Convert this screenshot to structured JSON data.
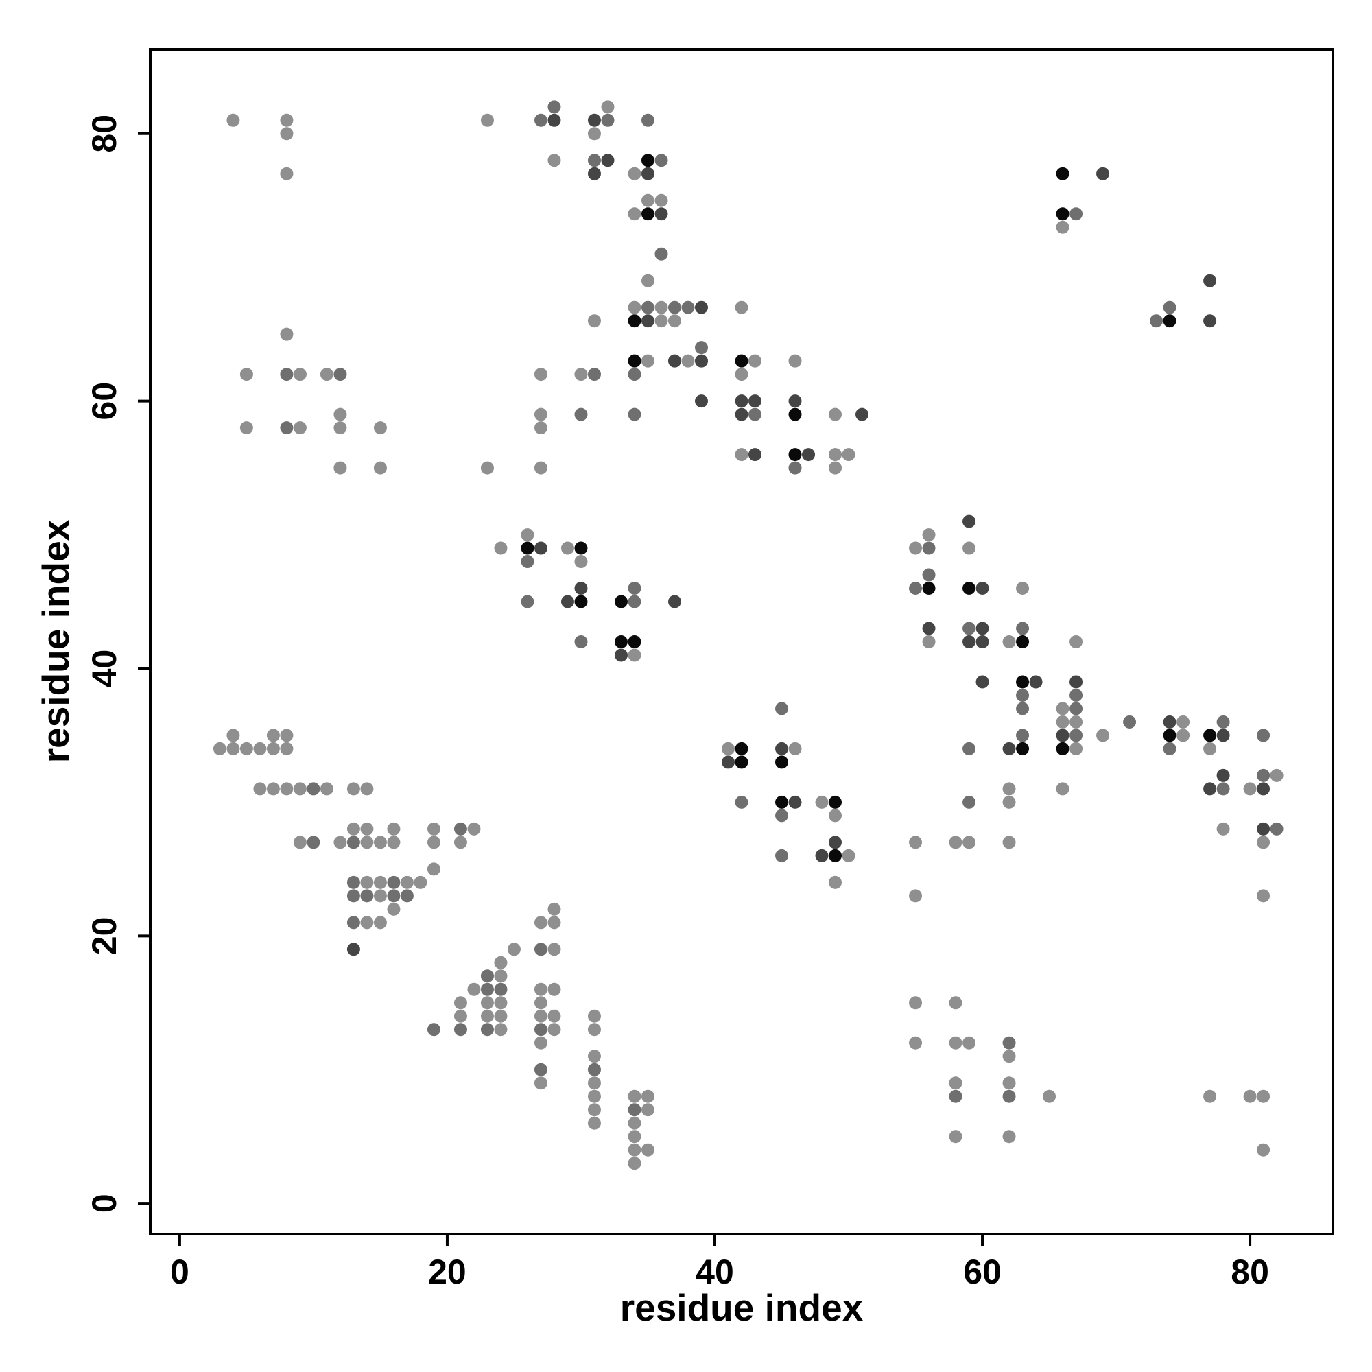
{
  "chart_data": {
    "type": "scatter",
    "xlabel": "residue index",
    "ylabel": "residue index",
    "xlim": [
      -2.2,
      86.2
    ],
    "ylim": [
      -2.3,
      86.3
    ],
    "xticks": [
      0,
      20,
      40,
      60,
      80
    ],
    "yticks": [
      0,
      20,
      40,
      60,
      80
    ],
    "grid": false,
    "shade_levels": {
      "l": "#8f8f8f",
      "m": "#6f6f6f",
      "d": "#454545",
      "k": "#0a0a0a"
    },
    "points": [
      [
        4,
        81,
        "l"
      ],
      [
        8,
        81,
        "l"
      ],
      [
        8,
        80,
        "l"
      ],
      [
        8,
        77,
        "l"
      ],
      [
        23,
        81,
        "l"
      ],
      [
        27,
        81,
        "m"
      ],
      [
        28,
        82,
        "m"
      ],
      [
        28,
        81,
        "d"
      ],
      [
        28,
        78,
        "l"
      ],
      [
        31,
        81,
        "d"
      ],
      [
        31,
        80,
        "l"
      ],
      [
        32,
        82,
        "l"
      ],
      [
        32,
        81,
        "m"
      ],
      [
        31,
        78,
        "m"
      ],
      [
        32,
        78,
        "d"
      ],
      [
        31,
        77,
        "d"
      ],
      [
        35,
        81,
        "m"
      ],
      [
        35,
        78,
        "k"
      ],
      [
        36,
        78,
        "m"
      ],
      [
        34,
        77,
        "l"
      ],
      [
        35,
        77,
        "d"
      ],
      [
        35,
        75,
        "l"
      ],
      [
        36,
        75,
        "l"
      ],
      [
        34,
        74,
        "l"
      ],
      [
        35,
        74,
        "k"
      ],
      [
        36,
        74,
        "d"
      ],
      [
        36,
        71,
        "m"
      ],
      [
        35,
        69,
        "l"
      ],
      [
        34,
        67,
        "l"
      ],
      [
        35,
        67,
        "m"
      ],
      [
        36,
        67,
        "l"
      ],
      [
        37,
        67,
        "m"
      ],
      [
        38,
        67,
        "m"
      ],
      [
        39,
        67,
        "d"
      ],
      [
        31,
        66,
        "l"
      ],
      [
        34,
        66,
        "k"
      ],
      [
        35,
        66,
        "d"
      ],
      [
        36,
        66,
        "l"
      ],
      [
        37,
        66,
        "l"
      ],
      [
        34,
        63,
        "k"
      ],
      [
        35,
        63,
        "l"
      ],
      [
        37,
        63,
        "d"
      ],
      [
        38,
        63,
        "l"
      ],
      [
        39,
        63,
        "d"
      ],
      [
        39,
        64,
        "m"
      ],
      [
        34,
        62,
        "m"
      ],
      [
        39,
        60,
        "d"
      ],
      [
        34,
        59,
        "m"
      ],
      [
        66,
        77,
        "k"
      ],
      [
        69,
        77,
        "d"
      ],
      [
        66,
        74,
        "k"
      ],
      [
        67,
        74,
        "m"
      ],
      [
        66,
        73,
        "l"
      ],
      [
        77,
        69,
        "d"
      ],
      [
        74,
        67,
        "m"
      ],
      [
        73,
        66,
        "m"
      ],
      [
        74,
        66,
        "k"
      ],
      [
        77,
        66,
        "d"
      ],
      [
        5,
        62,
        "l"
      ],
      [
        8,
        62,
        "m"
      ],
      [
        9,
        62,
        "l"
      ],
      [
        11,
        62,
        "l"
      ],
      [
        12,
        62,
        "m"
      ],
      [
        8,
        65,
        "l"
      ],
      [
        12,
        59,
        "l"
      ],
      [
        5,
        58,
        "l"
      ],
      [
        8,
        58,
        "m"
      ],
      [
        9,
        58,
        "l"
      ],
      [
        12,
        58,
        "l"
      ],
      [
        15,
        58,
        "l"
      ],
      [
        12,
        55,
        "l"
      ],
      [
        15,
        55,
        "l"
      ],
      [
        23,
        55,
        "l"
      ],
      [
        27,
        62,
        "l"
      ],
      [
        27,
        59,
        "l"
      ],
      [
        27,
        58,
        "l"
      ],
      [
        27,
        55,
        "l"
      ],
      [
        30,
        62,
        "l"
      ],
      [
        31,
        62,
        "m"
      ],
      [
        30,
        59,
        "m"
      ],
      [
        42,
        67,
        "l"
      ],
      [
        42,
        63,
        "k"
      ],
      [
        43,
        63,
        "l"
      ],
      [
        42,
        62,
        "l"
      ],
      [
        42,
        60,
        "d"
      ],
      [
        43,
        60,
        "d"
      ],
      [
        42,
        59,
        "d"
      ],
      [
        43,
        59,
        "m"
      ],
      [
        42,
        56,
        "l"
      ],
      [
        43,
        56,
        "d"
      ],
      [
        46,
        63,
        "l"
      ],
      [
        46,
        60,
        "d"
      ],
      [
        46,
        59,
        "k"
      ],
      [
        46,
        56,
        "k"
      ],
      [
        47,
        56,
        "d"
      ],
      [
        46,
        55,
        "m"
      ],
      [
        49,
        59,
        "l"
      ],
      [
        51,
        59,
        "d"
      ],
      [
        49,
        56,
        "l"
      ],
      [
        50,
        56,
        "l"
      ],
      [
        49,
        55,
        "l"
      ],
      [
        24,
        49,
        "l"
      ],
      [
        26,
        50,
        "l"
      ],
      [
        26,
        49,
        "k"
      ],
      [
        27,
        49,
        "d"
      ],
      [
        26,
        48,
        "m"
      ],
      [
        29,
        49,
        "l"
      ],
      [
        30,
        49,
        "k"
      ],
      [
        30,
        48,
        "l"
      ],
      [
        30,
        46,
        "d"
      ],
      [
        26,
        45,
        "m"
      ],
      [
        29,
        45,
        "d"
      ],
      [
        30,
        45,
        "k"
      ],
      [
        30,
        42,
        "m"
      ],
      [
        33,
        45,
        "k"
      ],
      [
        34,
        45,
        "m"
      ],
      [
        34,
        46,
        "m"
      ],
      [
        37,
        45,
        "d"
      ],
      [
        33,
        42,
        "k"
      ],
      [
        34,
        42,
        "k"
      ],
      [
        33,
        41,
        "d"
      ],
      [
        34,
        41,
        "l"
      ],
      [
        55,
        49,
        "l"
      ],
      [
        56,
        49,
        "m"
      ],
      [
        56,
        50,
        "l"
      ],
      [
        55,
        46,
        "m"
      ],
      [
        56,
        46,
        "k"
      ],
      [
        56,
        47,
        "m"
      ],
      [
        56,
        43,
        "d"
      ],
      [
        56,
        42,
        "l"
      ],
      [
        59,
        51,
        "d"
      ],
      [
        59,
        49,
        "l"
      ],
      [
        59,
        46,
        "k"
      ],
      [
        60,
        46,
        "d"
      ],
      [
        59,
        43,
        "m"
      ],
      [
        60,
        43,
        "d"
      ],
      [
        59,
        42,
        "d"
      ],
      [
        60,
        42,
        "d"
      ],
      [
        60,
        39,
        "d"
      ],
      [
        62,
        42,
        "l"
      ],
      [
        63,
        42,
        "k"
      ],
      [
        63,
        43,
        "m"
      ],
      [
        63,
        46,
        "l"
      ],
      [
        63,
        39,
        "k"
      ],
      [
        64,
        39,
        "d"
      ],
      [
        63,
        38,
        "m"
      ],
      [
        63,
        37,
        "m"
      ],
      [
        63,
        35,
        "m"
      ],
      [
        62,
        34,
        "d"
      ],
      [
        63,
        34,
        "k"
      ],
      [
        66,
        37,
        "l"
      ],
      [
        67,
        37,
        "m"
      ],
      [
        67,
        38,
        "m"
      ],
      [
        67,
        39,
        "d"
      ],
      [
        66,
        36,
        "l"
      ],
      [
        67,
        36,
        "l"
      ],
      [
        66,
        35,
        "d"
      ],
      [
        67,
        35,
        "m"
      ],
      [
        66,
        34,
        "k"
      ],
      [
        67,
        34,
        "l"
      ],
      [
        67,
        42,
        "l"
      ],
      [
        69,
        35,
        "l"
      ],
      [
        71,
        36,
        "m"
      ],
      [
        74,
        36,
        "d"
      ],
      [
        75,
        36,
        "l"
      ],
      [
        74,
        35,
        "k"
      ],
      [
        75,
        35,
        "l"
      ],
      [
        74,
        34,
        "m"
      ],
      [
        77,
        35,
        "k"
      ],
      [
        78,
        35,
        "d"
      ],
      [
        78,
        36,
        "m"
      ],
      [
        77,
        34,
        "l"
      ],
      [
        77,
        31,
        "d"
      ],
      [
        78,
        32,
        "d"
      ],
      [
        78,
        31,
        "m"
      ],
      [
        78,
        28,
        "l"
      ],
      [
        81,
        35,
        "m"
      ],
      [
        80,
        31,
        "l"
      ],
      [
        81,
        31,
        "d"
      ],
      [
        81,
        32,
        "m"
      ],
      [
        82,
        32,
        "l"
      ],
      [
        81,
        28,
        "d"
      ],
      [
        82,
        28,
        "m"
      ],
      [
        81,
        27,
        "l"
      ],
      [
        81,
        23,
        "l"
      ],
      [
        41,
        34,
        "l"
      ],
      [
        42,
        34,
        "k"
      ],
      [
        41,
        33,
        "d"
      ],
      [
        42,
        33,
        "k"
      ],
      [
        42,
        30,
        "m"
      ],
      [
        45,
        37,
        "m"
      ],
      [
        45,
        34,
        "d"
      ],
      [
        46,
        34,
        "l"
      ],
      [
        45,
        33,
        "k"
      ],
      [
        45,
        30,
        "k"
      ],
      [
        46,
        30,
        "d"
      ],
      [
        45,
        29,
        "m"
      ],
      [
        45,
        26,
        "m"
      ],
      [
        48,
        30,
        "l"
      ],
      [
        49,
        30,
        "k"
      ],
      [
        49,
        29,
        "l"
      ],
      [
        49,
        27,
        "d"
      ],
      [
        48,
        26,
        "d"
      ],
      [
        49,
        26,
        "k"
      ],
      [
        50,
        26,
        "l"
      ],
      [
        49,
        24,
        "l"
      ],
      [
        55,
        27,
        "l"
      ],
      [
        55,
        23,
        "l"
      ],
      [
        58,
        27,
        "l"
      ],
      [
        59,
        27,
        "l"
      ],
      [
        59,
        30,
        "m"
      ],
      [
        59,
        34,
        "m"
      ],
      [
        62,
        31,
        "l"
      ],
      [
        62,
        30,
        "l"
      ],
      [
        62,
        27,
        "l"
      ],
      [
        66,
        31,
        "l"
      ],
      [
        3,
        34,
        "l"
      ],
      [
        4,
        35,
        "l"
      ],
      [
        4,
        34,
        "l"
      ],
      [
        5,
        34,
        "l"
      ],
      [
        6,
        34,
        "l"
      ],
      [
        7,
        35,
        "l"
      ],
      [
        7,
        34,
        "l"
      ],
      [
        8,
        35,
        "l"
      ],
      [
        8,
        34,
        "l"
      ],
      [
        6,
        31,
        "l"
      ],
      [
        7,
        31,
        "l"
      ],
      [
        8,
        31,
        "l"
      ],
      [
        9,
        31,
        "l"
      ],
      [
        10,
        31,
        "m"
      ],
      [
        11,
        31,
        "l"
      ],
      [
        13,
        31,
        "l"
      ],
      [
        14,
        31,
        "l"
      ],
      [
        9,
        27,
        "l"
      ],
      [
        10,
        27,
        "m"
      ],
      [
        12,
        27,
        "l"
      ],
      [
        13,
        28,
        "l"
      ],
      [
        13,
        27,
        "m"
      ],
      [
        14,
        28,
        "l"
      ],
      [
        14,
        27,
        "l"
      ],
      [
        15,
        27,
        "l"
      ],
      [
        16,
        28,
        "l"
      ],
      [
        16,
        27,
        "l"
      ],
      [
        19,
        28,
        "l"
      ],
      [
        19,
        27,
        "l"
      ],
      [
        21,
        28,
        "m"
      ],
      [
        22,
        28,
        "l"
      ],
      [
        21,
        27,
        "l"
      ],
      [
        19,
        25,
        "l"
      ],
      [
        13,
        24,
        "m"
      ],
      [
        14,
        24,
        "l"
      ],
      [
        15,
        24,
        "l"
      ],
      [
        16,
        24,
        "m"
      ],
      [
        17,
        24,
        "l"
      ],
      [
        18,
        24,
        "l"
      ],
      [
        13,
        23,
        "m"
      ],
      [
        14,
        23,
        "m"
      ],
      [
        15,
        23,
        "l"
      ],
      [
        16,
        23,
        "m"
      ],
      [
        17,
        23,
        "m"
      ],
      [
        16,
        22,
        "l"
      ],
      [
        13,
        21,
        "m"
      ],
      [
        14,
        21,
        "l"
      ],
      [
        15,
        21,
        "l"
      ],
      [
        13,
        19,
        "d"
      ],
      [
        27,
        21,
        "l"
      ],
      [
        28,
        21,
        "l"
      ],
      [
        28,
        22,
        "l"
      ],
      [
        25,
        19,
        "l"
      ],
      [
        27,
        19,
        "m"
      ],
      [
        28,
        19,
        "l"
      ],
      [
        24,
        18,
        "l"
      ],
      [
        23,
        17,
        "m"
      ],
      [
        24,
        17,
        "l"
      ],
      [
        22,
        16,
        "l"
      ],
      [
        23,
        16,
        "m"
      ],
      [
        24,
        16,
        "m"
      ],
      [
        27,
        16,
        "l"
      ],
      [
        28,
        16,
        "l"
      ],
      [
        21,
        15,
        "l"
      ],
      [
        23,
        15,
        "l"
      ],
      [
        24,
        15,
        "l"
      ],
      [
        27,
        15,
        "l"
      ],
      [
        21,
        14,
        "l"
      ],
      [
        23,
        14,
        "l"
      ],
      [
        24,
        14,
        "l"
      ],
      [
        27,
        14,
        "l"
      ],
      [
        28,
        14,
        "l"
      ],
      [
        31,
        14,
        "l"
      ],
      [
        19,
        13,
        "m"
      ],
      [
        21,
        13,
        "m"
      ],
      [
        23,
        13,
        "m"
      ],
      [
        24,
        13,
        "l"
      ],
      [
        27,
        13,
        "m"
      ],
      [
        28,
        13,
        "l"
      ],
      [
        31,
        13,
        "l"
      ],
      [
        27,
        12,
        "l"
      ],
      [
        31,
        11,
        "l"
      ],
      [
        27,
        10,
        "m"
      ],
      [
        31,
        10,
        "m"
      ],
      [
        27,
        9,
        "l"
      ],
      [
        31,
        9,
        "l"
      ],
      [
        31,
        8,
        "l"
      ],
      [
        31,
        7,
        "l"
      ],
      [
        31,
        6,
        "l"
      ],
      [
        34,
        8,
        "l"
      ],
      [
        35,
        8,
        "l"
      ],
      [
        34,
        7,
        "m"
      ],
      [
        35,
        7,
        "l"
      ],
      [
        34,
        6,
        "l"
      ],
      [
        34,
        5,
        "l"
      ],
      [
        34,
        4,
        "l"
      ],
      [
        35,
        4,
        "l"
      ],
      [
        34,
        3,
        "l"
      ],
      [
        55,
        15,
        "l"
      ],
      [
        58,
        15,
        "l"
      ],
      [
        55,
        12,
        "l"
      ],
      [
        58,
        12,
        "l"
      ],
      [
        59,
        12,
        "l"
      ],
      [
        62,
        12,
        "m"
      ],
      [
        62,
        11,
        "l"
      ],
      [
        58,
        9,
        "l"
      ],
      [
        62,
        9,
        "l"
      ],
      [
        58,
        8,
        "m"
      ],
      [
        62,
        8,
        "m"
      ],
      [
        65,
        8,
        "l"
      ],
      [
        58,
        5,
        "l"
      ],
      [
        62,
        5,
        "l"
      ],
      [
        77,
        8,
        "l"
      ],
      [
        80,
        8,
        "l"
      ],
      [
        81,
        8,
        "l"
      ],
      [
        81,
        4,
        "l"
      ]
    ]
  }
}
